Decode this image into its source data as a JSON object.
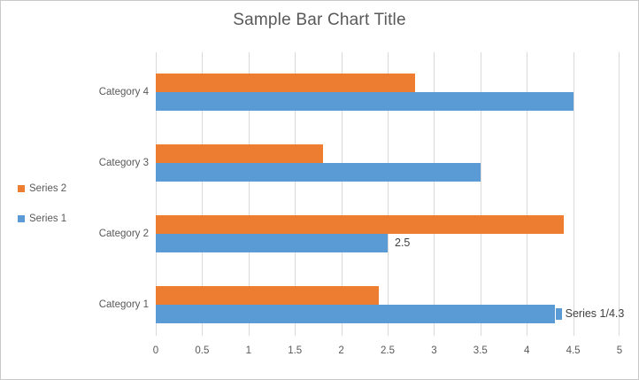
{
  "window": {
    "background": "#FFFFFF",
    "border_color": "#C9C9C9"
  },
  "chart_data": {
    "type": "bar",
    "orientation": "horizontal",
    "title": "Sample Bar Chart Title",
    "categories": [
      "Category 1",
      "Category 2",
      "Category 3",
      "Category 4"
    ],
    "display_order_top_to_bottom": [
      "Category 4",
      "Category 3",
      "Category 2",
      "Category 1"
    ],
    "series": [
      {
        "name": "Series 1",
        "color": "#5B9BD5",
        "values": [
          4.3,
          2.5,
          3.5,
          4.5
        ],
        "data_labels": [
          {
            "category": "Category 1",
            "text": "Series 1/4.3",
            "leader_tab": true
          },
          {
            "category": "Category 2",
            "text": "2.5"
          }
        ]
      },
      {
        "name": "Series 2",
        "color": "#ED7D31",
        "values": [
          2.4,
          4.4,
          1.8,
          2.8
        ],
        "data_labels": []
      }
    ],
    "xlim": [
      0,
      5
    ],
    "x_ticks": [
      "0",
      "0.5",
      "1",
      "1.5",
      "2",
      "2.5",
      "3",
      "3.5",
      "4",
      "4.5",
      "5"
    ],
    "grid": "vertical",
    "gridline_color": "#D9D9D9",
    "legend_position": "left",
    "legend_entries_top_to_bottom": [
      "Series 2",
      "Series 1"
    ],
    "text_color": "#595959",
    "data_label_color": "#404040"
  }
}
